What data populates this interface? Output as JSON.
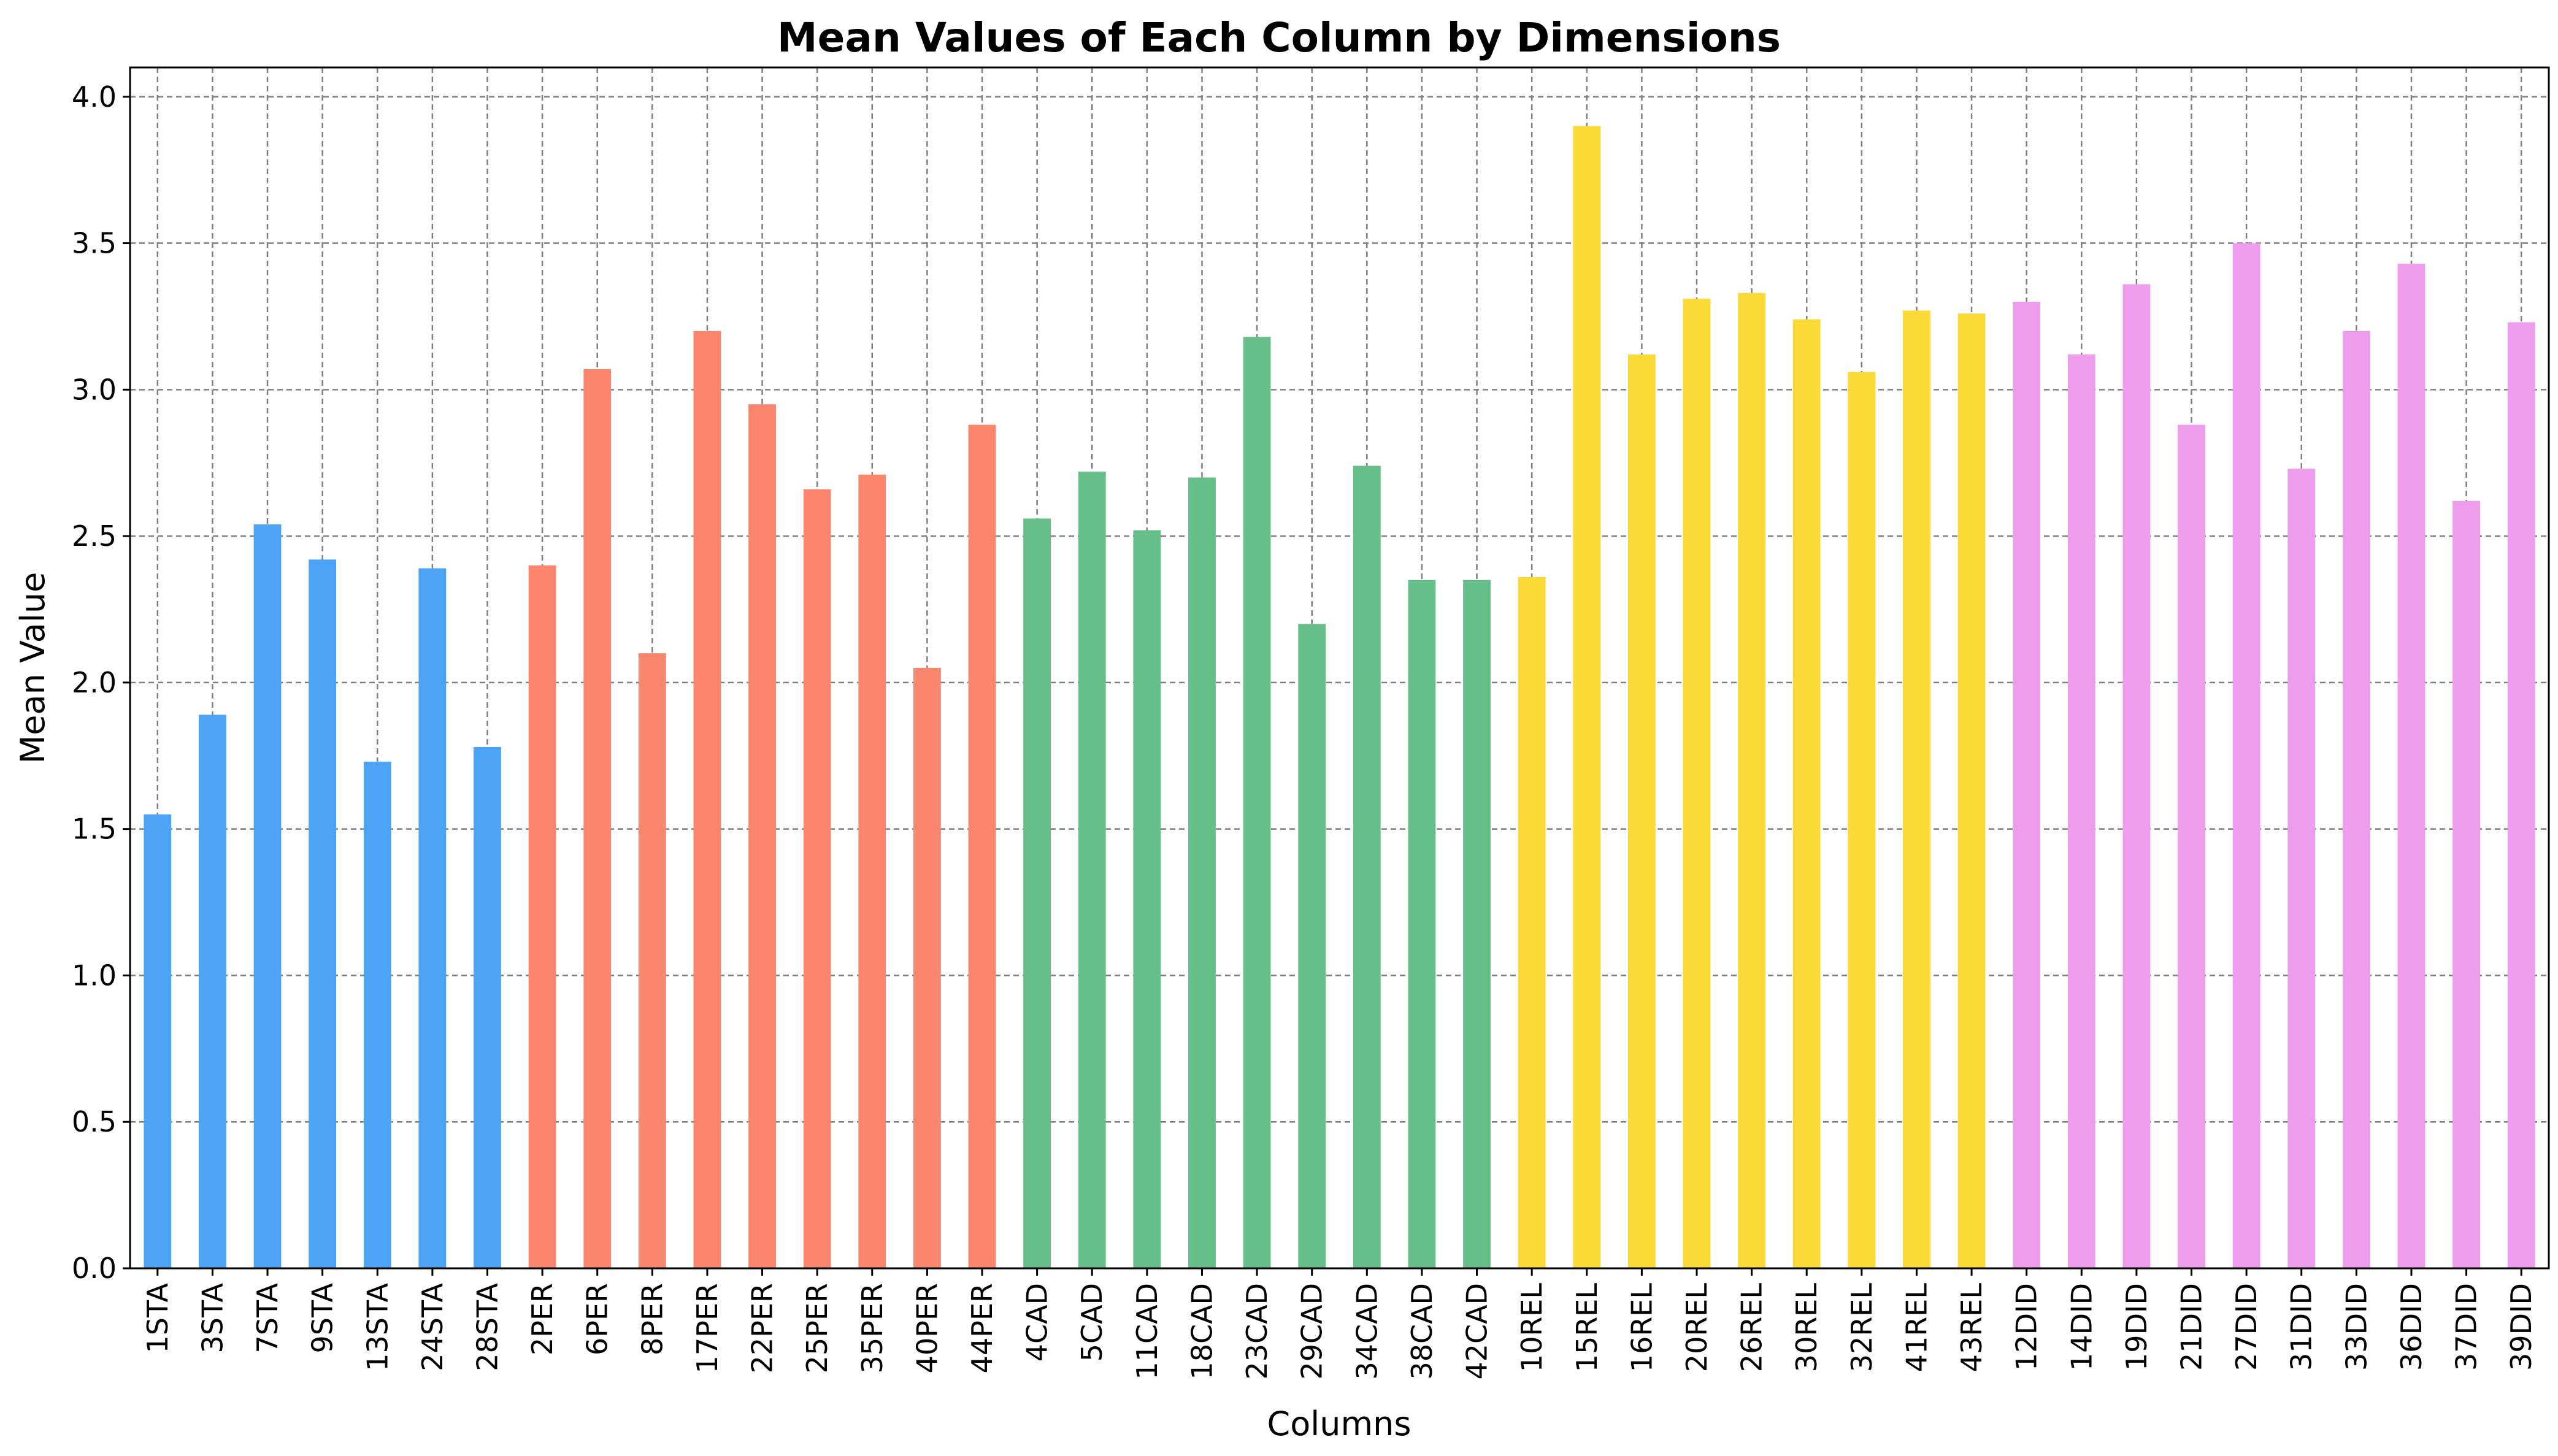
{
  "chart_data": {
    "type": "bar",
    "title": "Mean Values of Each Column by Dimensions",
    "xlabel": "Columns",
    "ylabel": "Mean Value",
    "ylim": [
      0,
      4.1
    ],
    "yticks": [
      0.0,
      0.5,
      1.0,
      1.5,
      2.0,
      2.5,
      3.0,
      3.5,
      4.0
    ],
    "ytick_labels": [
      "0.0",
      "0.5",
      "1.0",
      "1.5",
      "2.0",
      "2.5",
      "3.0",
      "3.5",
      "4.0"
    ],
    "grid": true,
    "categories": [
      "1STA",
      "3STA",
      "7STA",
      "9STA",
      "13STA",
      "24STA",
      "28STA",
      "2PER",
      "6PER",
      "8PER",
      "17PER",
      "22PER",
      "25PER",
      "35PER",
      "40PER",
      "44PER",
      "4CAD",
      "5CAD",
      "11CAD",
      "18CAD",
      "23CAD",
      "29CAD",
      "34CAD",
      "38CAD",
      "42CAD",
      "10REL",
      "15REL",
      "16REL",
      "20REL",
      "26REL",
      "30REL",
      "32REL",
      "41REL",
      "43REL",
      "12DID",
      "14DID",
      "19DID",
      "21DID",
      "27DID",
      "31DID",
      "33DID",
      "36DID",
      "37DID",
      "39DID"
    ],
    "values": [
      1.55,
      1.89,
      2.54,
      2.42,
      1.73,
      2.39,
      1.78,
      2.4,
      3.07,
      2.1,
      3.2,
      2.95,
      2.66,
      2.71,
      2.05,
      2.88,
      2.56,
      2.72,
      2.52,
      2.7,
      3.18,
      2.2,
      2.74,
      2.35,
      2.35,
      2.36,
      3.9,
      3.12,
      3.31,
      3.33,
      3.24,
      3.06,
      3.27,
      3.26,
      3.3,
      3.12,
      3.36,
      2.88,
      3.5,
      2.73,
      3.2,
      3.43,
      2.62,
      3.23
    ],
    "groups": [
      {
        "code": "STA",
        "color": "#4da3f5"
      },
      {
        "code": "PER",
        "color": "#fa866e"
      },
      {
        "code": "CAD",
        "color": "#66bf88"
      },
      {
        "code": "REL",
        "color": "#fbd936"
      },
      {
        "code": "DID",
        "color": "#ee9cec"
      }
    ]
  }
}
